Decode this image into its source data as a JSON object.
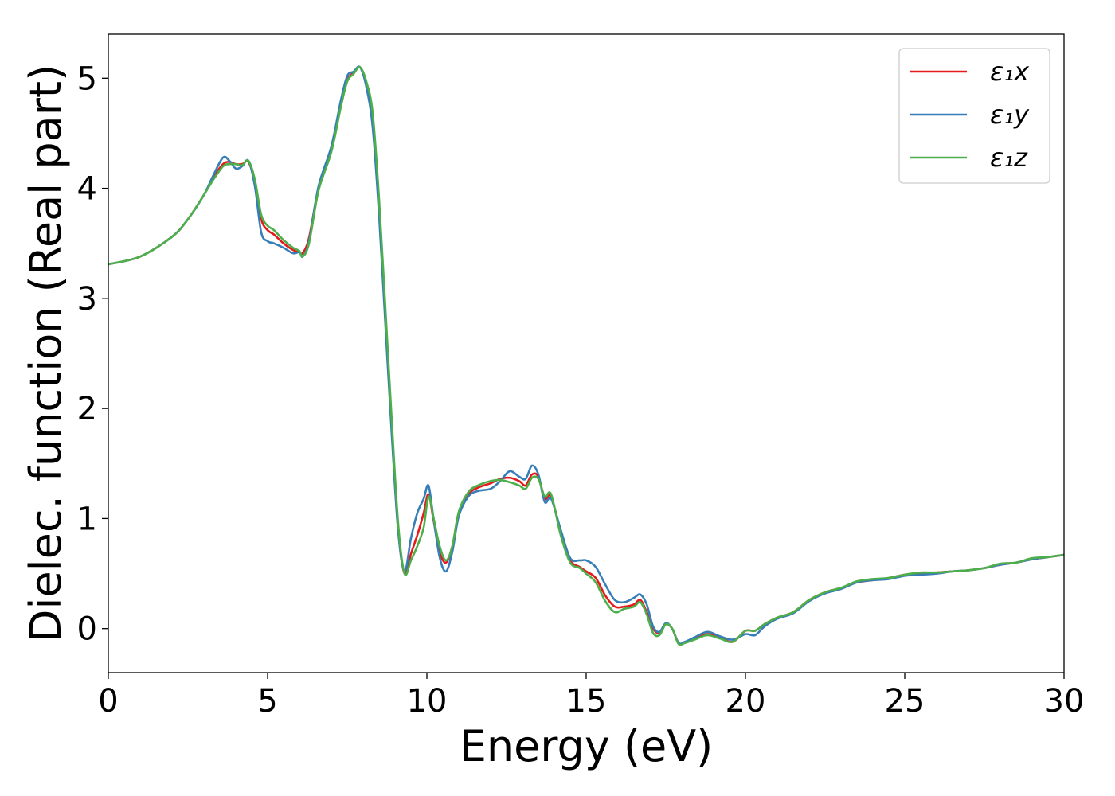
{
  "chart_data": {
    "type": "line",
    "title": "",
    "xlabel": "Energy (eV)",
    "ylabel": "Dielec. function (Real part)",
    "xlim": [
      0,
      30
    ],
    "ylim": [
      -0.4,
      5.4
    ],
    "xticks": [
      0,
      5,
      10,
      15,
      20,
      25,
      30
    ],
    "yticks": [
      0,
      1,
      2,
      3,
      4,
      5
    ],
    "grid": false,
    "legend_position": "top-right",
    "series": [
      {
        "name": "ε₁x",
        "color": "#e41a1c",
        "x": [
          0,
          1,
          2,
          2.5,
          3,
          3.3,
          3.6,
          3.8,
          4.0,
          4.2,
          4.4,
          4.6,
          4.8,
          5.0,
          5.2,
          5.5,
          5.8,
          6.0,
          6.1,
          6.3,
          6.6,
          7.0,
          7.3,
          7.5,
          7.7,
          7.9,
          8.1,
          8.3,
          8.5,
          8.7,
          8.9,
          9.1,
          9.3,
          9.5,
          9.7,
          9.9,
          10.05,
          10.2,
          10.4,
          10.6,
          10.8,
          11.0,
          11.3,
          11.6,
          12.0,
          12.3,
          12.6,
          12.9,
          13.1,
          13.3,
          13.5,
          13.7,
          13.9,
          14.2,
          14.5,
          14.8,
          15.0,
          15.3,
          15.6,
          15.9,
          16.2,
          16.5,
          16.7,
          16.9,
          17.1,
          17.3,
          17.5,
          17.7,
          17.9,
          18.1,
          18.4,
          18.8,
          19.2,
          19.6,
          20.0,
          20.3,
          20.6,
          21.0,
          21.5,
          22.0,
          22.5,
          23.0,
          23.5,
          24.0,
          24.5,
          25.0,
          25.5,
          26.0,
          26.5,
          27.0,
          27.5,
          28.0,
          28.5,
          29.0,
          29.5,
          30.0
        ],
        "values": [
          3.31,
          3.38,
          3.56,
          3.72,
          3.94,
          4.1,
          4.22,
          4.24,
          4.22,
          4.22,
          4.24,
          4.05,
          3.72,
          3.62,
          3.58,
          3.5,
          3.44,
          3.42,
          3.41,
          3.55,
          4.0,
          4.35,
          4.75,
          4.98,
          5.05,
          5.1,
          4.95,
          4.6,
          3.8,
          2.8,
          1.8,
          0.9,
          0.5,
          0.68,
          0.85,
          1.05,
          1.22,
          1.0,
          0.7,
          0.6,
          0.75,
          1.05,
          1.22,
          1.28,
          1.32,
          1.36,
          1.37,
          1.34,
          1.3,
          1.4,
          1.38,
          1.18,
          1.2,
          0.88,
          0.62,
          0.56,
          0.52,
          0.46,
          0.3,
          0.2,
          0.2,
          0.22,
          0.26,
          0.15,
          0.0,
          -0.04,
          0.04,
          0.0,
          -0.13,
          -0.13,
          -0.09,
          -0.05,
          -0.08,
          -0.12,
          -0.02,
          -0.02,
          0.04,
          0.1,
          0.15,
          0.26,
          0.33,
          0.37,
          0.42,
          0.44,
          0.46,
          0.49,
          0.5,
          0.51,
          0.52,
          0.53,
          0.55,
          0.58,
          0.6,
          0.63,
          0.65,
          0.67
        ]
      },
      {
        "name": "ε₁y",
        "color": "#377eb8",
        "x": [
          0,
          1,
          2,
          2.5,
          3,
          3.3,
          3.6,
          3.8,
          4.0,
          4.2,
          4.4,
          4.6,
          4.8,
          5.0,
          5.2,
          5.5,
          5.8,
          6.0,
          6.1,
          6.3,
          6.6,
          7.0,
          7.3,
          7.5,
          7.7,
          7.9,
          8.1,
          8.3,
          8.5,
          8.7,
          8.9,
          9.1,
          9.3,
          9.5,
          9.7,
          9.9,
          10.05,
          10.2,
          10.4,
          10.6,
          10.8,
          11.0,
          11.3,
          11.6,
          12.0,
          12.3,
          12.6,
          12.9,
          13.1,
          13.3,
          13.5,
          13.7,
          13.9,
          14.2,
          14.5,
          14.8,
          15.0,
          15.3,
          15.6,
          15.9,
          16.2,
          16.5,
          16.7,
          16.9,
          17.1,
          17.3,
          17.5,
          17.7,
          17.9,
          18.1,
          18.4,
          18.8,
          19.2,
          19.6,
          20.0,
          20.3,
          20.6,
          21.0,
          21.5,
          22.0,
          22.5,
          23.0,
          23.5,
          24.0,
          24.5,
          25.0,
          25.5,
          26.0,
          26.5,
          27.0,
          27.5,
          28.0,
          28.5,
          29.0,
          29.5,
          30.0
        ],
        "values": [
          3.31,
          3.38,
          3.56,
          3.72,
          3.94,
          4.12,
          4.28,
          4.25,
          4.18,
          4.2,
          4.25,
          4.02,
          3.6,
          3.52,
          3.5,
          3.46,
          3.41,
          3.42,
          3.38,
          3.52,
          4.02,
          4.38,
          4.8,
          5.02,
          5.06,
          5.1,
          4.92,
          4.55,
          3.75,
          2.75,
          1.75,
          0.88,
          0.52,
          0.82,
          1.05,
          1.18,
          1.3,
          1.02,
          0.65,
          0.52,
          0.7,
          1.02,
          1.2,
          1.25,
          1.27,
          1.34,
          1.43,
          1.38,
          1.36,
          1.48,
          1.4,
          1.15,
          1.18,
          0.9,
          0.64,
          0.62,
          0.62,
          0.56,
          0.4,
          0.26,
          0.24,
          0.28,
          0.31,
          0.22,
          0.02,
          -0.03,
          0.05,
          0.0,
          -0.13,
          -0.12,
          -0.08,
          -0.03,
          -0.07,
          -0.1,
          -0.05,
          -0.06,
          0.02,
          0.09,
          0.14,
          0.25,
          0.32,
          0.36,
          0.42,
          0.44,
          0.45,
          0.48,
          0.49,
          0.5,
          0.52,
          0.53,
          0.55,
          0.58,
          0.6,
          0.63,
          0.65,
          0.67
        ]
      },
      {
        "name": "ε₁z",
        "color": "#4daf4a",
        "x": [
          0,
          1,
          2,
          2.5,
          3,
          3.3,
          3.6,
          3.8,
          4.0,
          4.2,
          4.4,
          4.6,
          4.8,
          5.0,
          5.2,
          5.5,
          5.8,
          6.0,
          6.1,
          6.3,
          6.6,
          7.0,
          7.3,
          7.5,
          7.7,
          7.9,
          8.1,
          8.3,
          8.5,
          8.7,
          8.9,
          9.1,
          9.3,
          9.5,
          9.7,
          9.9,
          10.05,
          10.2,
          10.4,
          10.6,
          10.8,
          11.0,
          11.3,
          11.6,
          12.0,
          12.3,
          12.6,
          12.9,
          13.1,
          13.3,
          13.5,
          13.7,
          13.9,
          14.2,
          14.5,
          14.8,
          15.0,
          15.3,
          15.6,
          15.9,
          16.2,
          16.5,
          16.7,
          16.9,
          17.1,
          17.3,
          17.5,
          17.7,
          17.9,
          18.1,
          18.4,
          18.8,
          19.2,
          19.6,
          20.0,
          20.3,
          20.6,
          21.0,
          21.5,
          22.0,
          22.5,
          23.0,
          23.5,
          24.0,
          24.5,
          25.0,
          25.5,
          26.0,
          26.5,
          27.0,
          27.5,
          28.0,
          28.5,
          29.0,
          29.5,
          30.0
        ],
        "values": [
          3.31,
          3.38,
          3.56,
          3.72,
          3.94,
          4.08,
          4.2,
          4.22,
          4.22,
          4.21,
          4.25,
          4.08,
          3.76,
          3.66,
          3.62,
          3.53,
          3.46,
          3.43,
          3.38,
          3.5,
          3.98,
          4.33,
          4.74,
          4.97,
          5.04,
          5.1,
          4.97,
          4.68,
          3.9,
          2.9,
          1.88,
          0.95,
          0.5,
          0.62,
          0.75,
          0.92,
          1.2,
          1.02,
          0.75,
          0.62,
          0.75,
          1.06,
          1.24,
          1.3,
          1.34,
          1.35,
          1.33,
          1.3,
          1.27,
          1.37,
          1.36,
          1.2,
          1.22,
          0.85,
          0.6,
          0.55,
          0.5,
          0.42,
          0.25,
          0.15,
          0.18,
          0.2,
          0.24,
          0.13,
          -0.04,
          -0.06,
          0.04,
          0.0,
          -0.14,
          -0.13,
          -0.1,
          -0.06,
          -0.09,
          -0.12,
          -0.02,
          -0.02,
          0.04,
          0.1,
          0.15,
          0.26,
          0.33,
          0.37,
          0.43,
          0.45,
          0.46,
          0.49,
          0.51,
          0.51,
          0.52,
          0.53,
          0.55,
          0.59,
          0.6,
          0.64,
          0.65,
          0.67
        ]
      }
    ]
  }
}
